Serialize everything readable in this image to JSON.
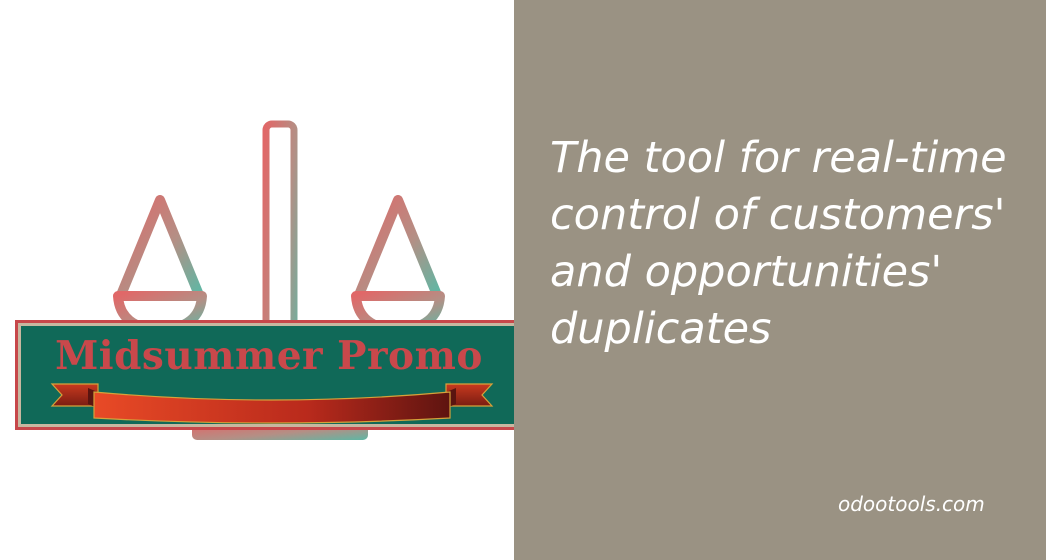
{
  "banner": {
    "headline_lines": [
      "The tool for real-time",
      "control of customers'",
      "and opportunities'",
      "duplicates"
    ],
    "site": "odootools.com"
  },
  "promo": {
    "title": "Midsummer Promo"
  },
  "colors": {
    "right_panel_bg": "#9a9283",
    "promo_bg": "#106958",
    "promo_text": "#c9484b",
    "scale_gradient_start": "#d96a6b",
    "scale_gradient_end": "#6fb3a2",
    "ribbon": "#d8381f"
  },
  "icons": {
    "logo": "balance-scale-icon",
    "decoration": "ribbon-icon"
  }
}
